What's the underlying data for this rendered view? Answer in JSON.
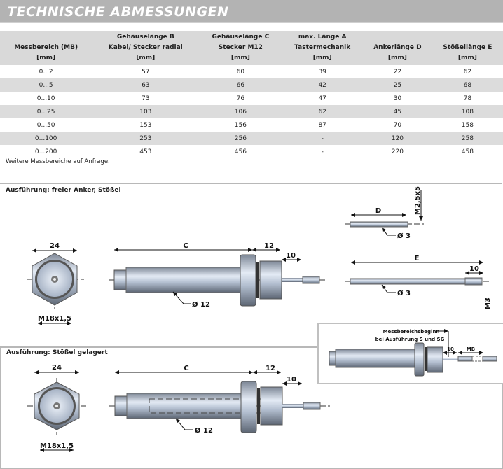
{
  "title": "TECHNISCHE ABMESSUNGEN",
  "table": {
    "headers": [
      [
        "",
        "Messbereich (MB)",
        "[mm]"
      ],
      [
        "Gehäuselänge B",
        "Kabel/ Stecker radial",
        "[mm]"
      ],
      [
        "Gehäuselänge C",
        "Stecker M12",
        "[mm]"
      ],
      [
        "max. Länge A",
        "Tastermechanik",
        "[mm]"
      ],
      [
        "",
        "Ankerlänge D",
        "[mm]"
      ],
      [
        "",
        "Stößellänge E",
        "[mm]"
      ]
    ],
    "rows": [
      [
        "0...2",
        "57",
        "60",
        "39",
        "22",
        "62"
      ],
      [
        "0...5",
        "63",
        "66",
        "42",
        "25",
        "68"
      ],
      [
        "0...10",
        "73",
        "76",
        "47",
        "30",
        "78"
      ],
      [
        "0...25",
        "103",
        "106",
        "62",
        "45",
        "108"
      ],
      [
        "0...50",
        "153",
        "156",
        "87",
        "70",
        "158"
      ],
      [
        "0...100",
        "253",
        "256",
        "-",
        "120",
        "258"
      ],
      [
        "0...200",
        "453",
        "456",
        "-",
        "220",
        "458"
      ]
    ]
  },
  "note": "Weitere Messbereiche auf Anfrage.",
  "panel1": {
    "title": "Ausführung: freier Anker, Stößel",
    "dim_24": "24",
    "thread": "M18x1,5",
    "dim_c": "C",
    "dim_12": "12",
    "dim_10": "10",
    "dia_12": "Ø 12",
    "dim_d": "D",
    "anchor_thread": "M2,5x5",
    "dia_3_d": "Ø 3",
    "dim_e": "E",
    "dim_10_e": "10",
    "dia_3_e": "Ø 3",
    "tip_thread": "M3"
  },
  "panel2": {
    "title": "Ausführung: Stößel gelagert",
    "dim_24": "24",
    "thread": "M18x1,5",
    "dim_c": "C",
    "dim_12": "12",
    "dim_10": "10",
    "dia_12": "Ø 12"
  },
  "inset": {
    "line1": "Messbereichsbeginn",
    "line2": "bei Ausführung S und SG",
    "dim_10": "10",
    "dim_mb": "MB"
  }
}
